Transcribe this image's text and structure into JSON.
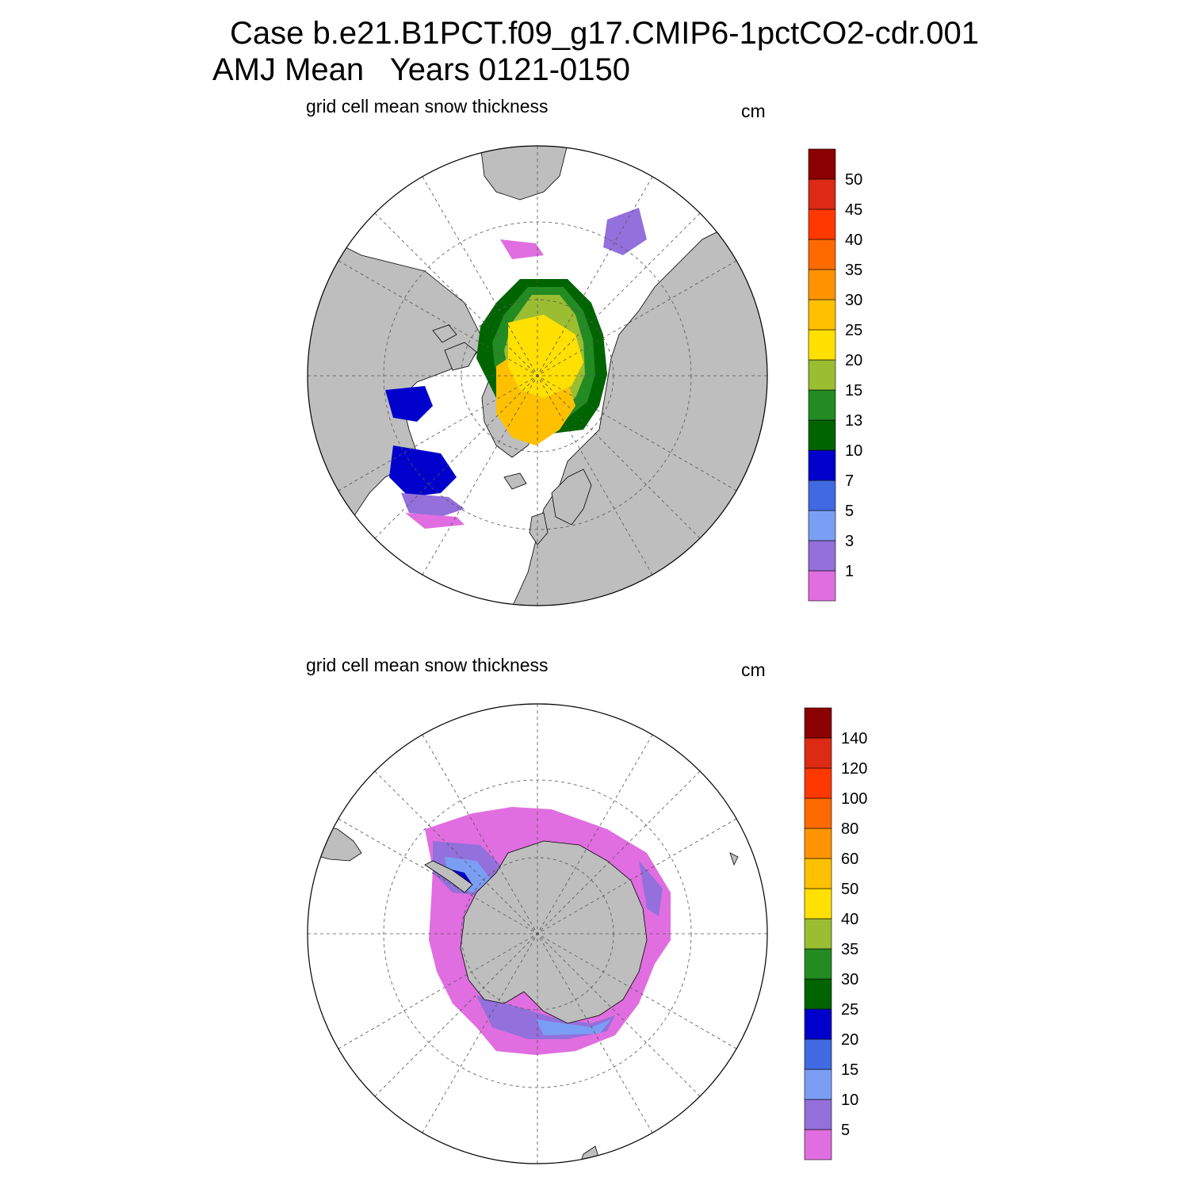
{
  "header": {
    "case_line": "Case b.e21.B1PCT.f09_g17.CMIP6-1pctCO2-cdr.001",
    "period_line": "AMJ Mean   Years 0121-0150"
  },
  "colors": {
    "land": "#bebebe",
    "background": "#ffffff",
    "palette_nh": [
      "#e06ee0",
      "#9370db",
      "#7b9ef5",
      "#4169e1",
      "#0000cd",
      "#006400",
      "#228b22",
      "#9abd32",
      "#ffe000",
      "#ffc000",
      "#ff9400",
      "#ff6a00",
      "#ff3800",
      "#dc2a14",
      "#8b0000"
    ],
    "palette_sh": [
      "#e06ee0",
      "#9370db",
      "#7b9ef5",
      "#4169e1",
      "#0000cd",
      "#006400",
      "#228b22",
      "#9abd32",
      "#ffe000",
      "#ffc000",
      "#ff9400",
      "#ff6a00",
      "#ff3800",
      "#dc2a14",
      "#8b0000"
    ]
  },
  "panels": {
    "north": {
      "variable": "grid cell mean snow thickness",
      "units": "cm",
      "hemisphere": "Northern",
      "colorbar_levels": [
        "1",
        "3",
        "5",
        "7",
        "10",
        "13",
        "15",
        "20",
        "25",
        "30",
        "35",
        "40",
        "45",
        "50"
      ]
    },
    "south": {
      "variable": "grid cell mean snow thickness",
      "units": "cm",
      "hemisphere": "Southern",
      "colorbar_levels": [
        "5",
        "10",
        "15",
        "20",
        "25",
        "30",
        "35",
        "40",
        "50",
        "60",
        "80",
        "100",
        "120",
        "140"
      ]
    }
  }
}
